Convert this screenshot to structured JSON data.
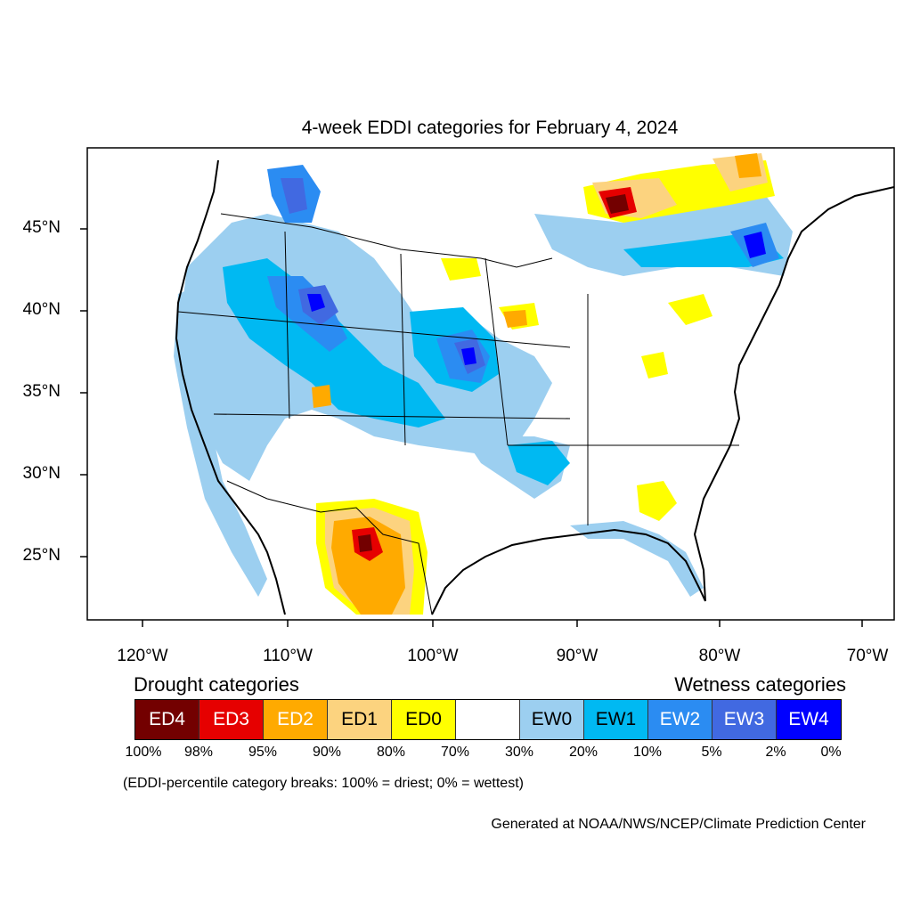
{
  "title": "4-week EDDI categories for February 4, 2024",
  "lat_labels": [
    "45°N",
    "40°N",
    "35°N",
    "30°N",
    "25°N"
  ],
  "lon_labels": [
    "120°W",
    "110°W",
    "100°W",
    "90°W",
    "80°W",
    "70°W"
  ],
  "legend": {
    "drought_heading": "Drought categories",
    "wetness_heading": "Wetness categories",
    "categories": [
      {
        "label": "ED4",
        "color": "#730000",
        "text_color": "#ffffff"
      },
      {
        "label": "ED3",
        "color": "#e60000",
        "text_color": "#ffffff"
      },
      {
        "label": "ED2",
        "color": "#ffaa00",
        "text_color": "#ffffff"
      },
      {
        "label": "ED1",
        "color": "#fcd37f",
        "text_color": "#000000"
      },
      {
        "label": "ED0",
        "color": "#ffff00",
        "text_color": "#000000"
      },
      {
        "label": "",
        "color": "#ffffff",
        "text_color": "#000000"
      },
      {
        "label": "EW0",
        "color": "#9ccff0",
        "text_color": "#000000"
      },
      {
        "label": "EW1",
        "color": "#00b9f2",
        "text_color": "#000000"
      },
      {
        "label": "EW2",
        "color": "#2b8cf2",
        "text_color": "#ffffff"
      },
      {
        "label": "EW3",
        "color": "#4169e1",
        "text_color": "#ffffff"
      },
      {
        "label": "EW4",
        "color": "#0000ff",
        "text_color": "#ffffff"
      }
    ],
    "breaks": [
      "100%",
      "98%",
      "95%",
      "90%",
      "80%",
      "70%",
      "30%",
      "20%",
      "10%",
      "5%",
      "2%",
      "0%"
    ]
  },
  "note": "(EDDI-percentile category breaks: 100% = driest; 0% = wettest)",
  "credit": "Generated at NOAA/NWS/NCEP/Climate Prediction Center"
}
